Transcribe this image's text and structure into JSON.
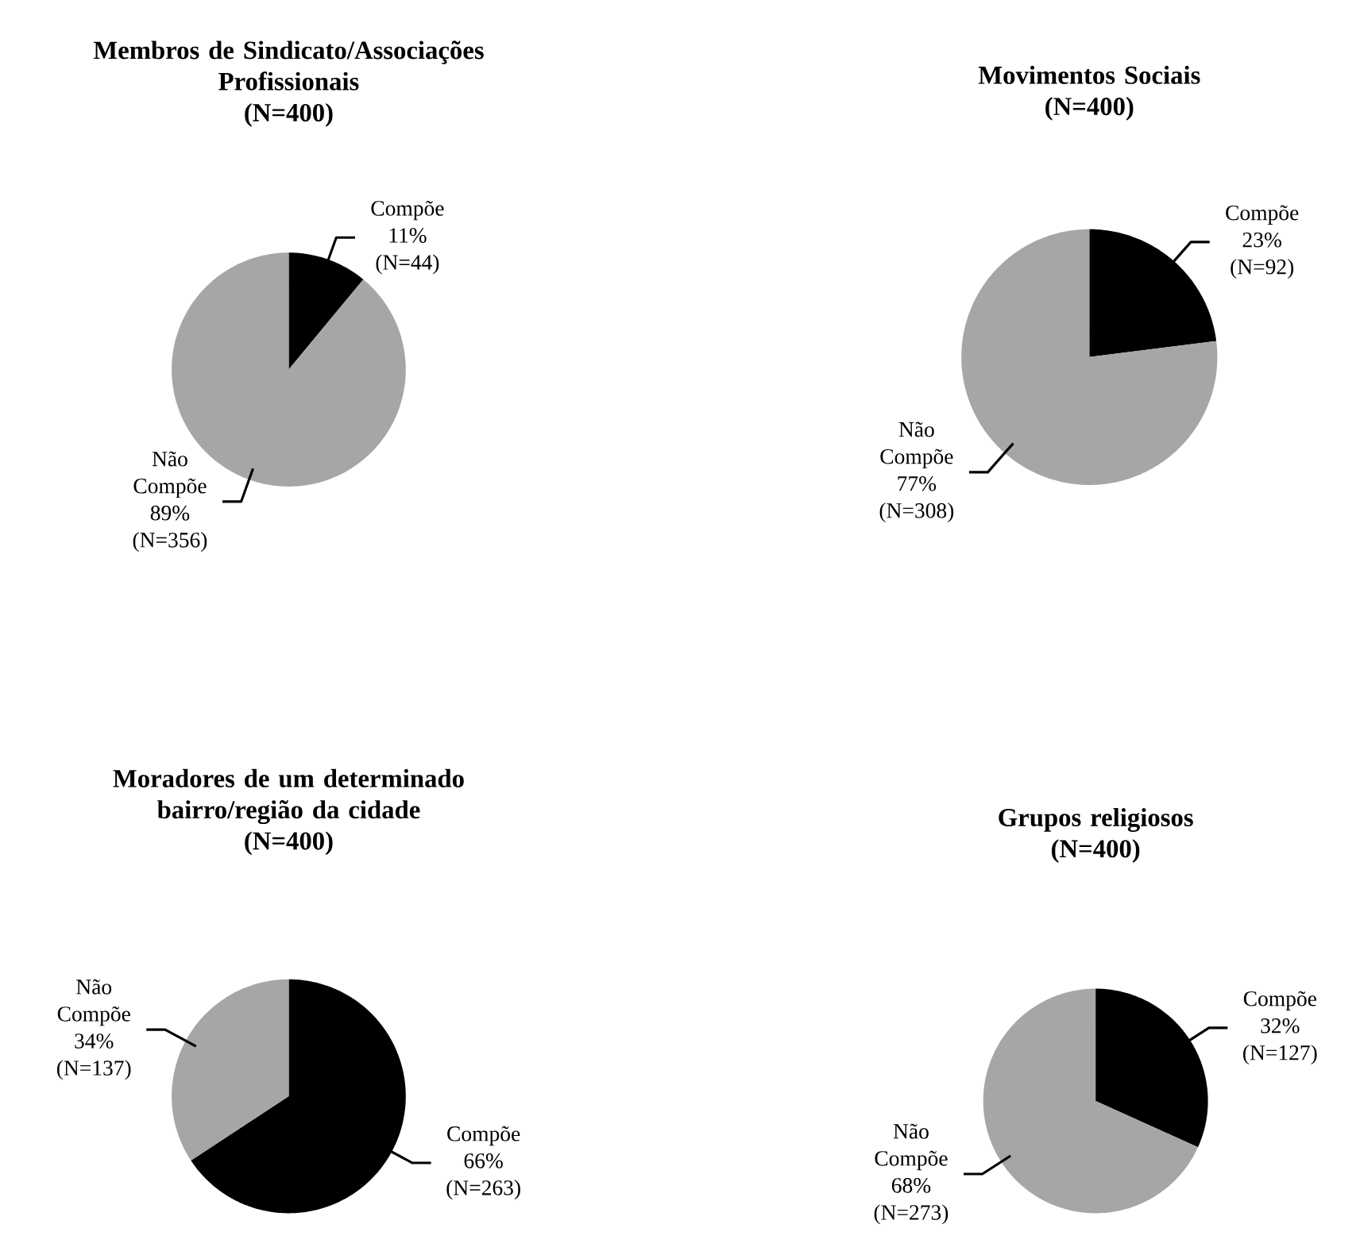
{
  "chart_data": [
    {
      "type": "pie",
      "title": "Membros de Sindicato/Associações Profissionais",
      "subtitle": "(N=400)",
      "categories": [
        "Compõe",
        "Não Compõe"
      ],
      "values": [
        44,
        356
      ],
      "colors": [
        "#000000",
        "#a6a6a6"
      ],
      "value_labels": [
        "11% (N=44)",
        "89% (N=356)"
      ]
    },
    {
      "type": "pie",
      "title": "Movimentos Sociais",
      "subtitle": "(N=400)",
      "categories": [
        "Compõe",
        "Não Compõe"
      ],
      "values": [
        92,
        308
      ],
      "colors": [
        "#000000",
        "#a6a6a6"
      ],
      "value_labels": [
        "23% (N=92)",
        "77% (N=308)"
      ]
    },
    {
      "type": "pie",
      "title": "Moradores de um determinado bairro/região da cidade",
      "subtitle": "(N=400)",
      "categories": [
        "Compõe",
        "Não Compõe"
      ],
      "values": [
        263,
        137
      ],
      "colors": [
        "#000000",
        "#a6a6a6"
      ],
      "value_labels": [
        "66% (N=263)",
        "34% (N=137)"
      ]
    },
    {
      "type": "pie",
      "title": "Grupos religiosos",
      "subtitle": "(N=400)",
      "categories": [
        "Compõe",
        "Não Compõe"
      ],
      "values": [
        127,
        273
      ],
      "colors": [
        "#000000",
        "#a6a6a6"
      ],
      "value_labels": [
        "32% (N=127)",
        "68% (N=273)"
      ]
    }
  ]
}
